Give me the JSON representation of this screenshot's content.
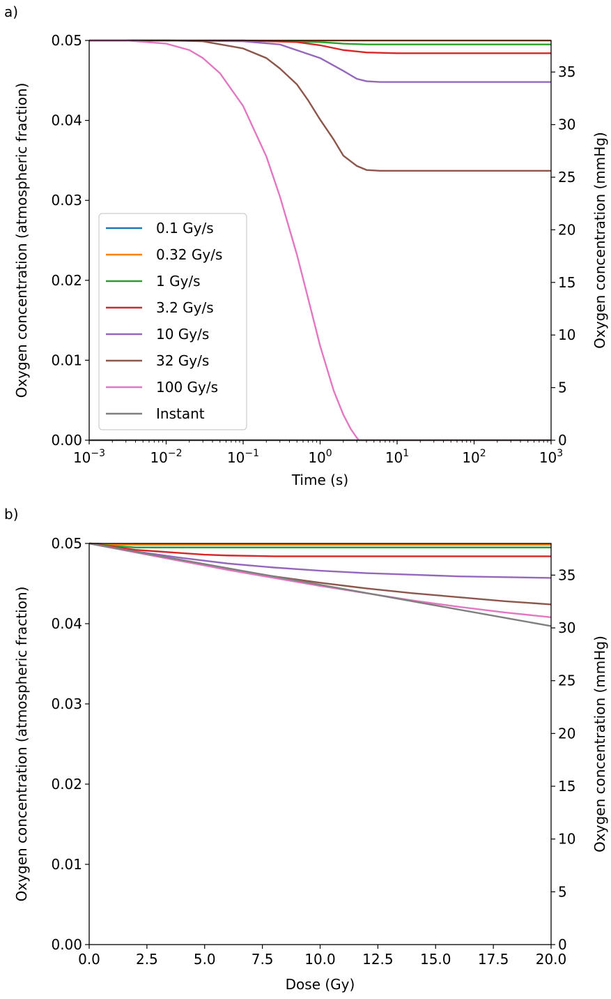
{
  "chart_data": [
    {
      "panel_label": "a)",
      "type": "line",
      "x_scale": "log",
      "xlim": [
        0.001,
        1000
      ],
      "ylim": [
        0,
        0.05
      ],
      "y2lim": [
        0,
        38
      ],
      "xlabel": "Time (s)",
      "ylabel": "Oxygen concentration (atmospheric fraction)",
      "y2label": "Oxygen concentration (mmHg)",
      "x_ticks": [
        {
          "value": 0.001,
          "base": "10",
          "exp": "−3"
        },
        {
          "value": 0.01,
          "base": "10",
          "exp": "−2"
        },
        {
          "value": 0.1,
          "base": "10",
          "exp": "−1"
        },
        {
          "value": 1,
          "base": "10",
          "exp": "0"
        },
        {
          "value": 10,
          "base": "10",
          "exp": "1"
        },
        {
          "value": 100,
          "base": "10",
          "exp": "2"
        },
        {
          "value": 1000,
          "base": "10",
          "exp": "3"
        }
      ],
      "y_ticks": [
        "0.00",
        "0.01",
        "0.02",
        "0.03",
        "0.04",
        "0.05"
      ],
      "y2_ticks": [
        "0",
        "5",
        "10",
        "15",
        "20",
        "25",
        "30",
        "35"
      ],
      "legend_position": "lower-left",
      "series": [
        {
          "name": "0.1 Gy/s",
          "color": "#1f77b4",
          "x": [
            0.001,
            0.01,
            0.1,
            1,
            10,
            100,
            1000
          ],
          "y": [
            0.04999,
            0.04999,
            0.04999,
            0.04999,
            0.04999,
            0.04999,
            0.04999
          ]
        },
        {
          "name": "0.32 Gy/s",
          "color": "#ff7f0e",
          "x": [
            0.001,
            0.01,
            0.1,
            1,
            10,
            100,
            1000
          ],
          "y": [
            0.04998,
            0.04998,
            0.04998,
            0.04998,
            0.04998,
            0.04998,
            0.04998
          ]
        },
        {
          "name": "1 Gy/s",
          "color": "#2ca02c",
          "x": [
            0.001,
            0.01,
            0.1,
            1,
            2,
            4,
            10,
            100,
            1000
          ],
          "y": [
            0.05,
            0.05,
            0.04999,
            0.0498,
            0.0496,
            0.0495,
            0.0495,
            0.0495,
            0.0495
          ]
        },
        {
          "name": "3.2 Gy/s",
          "color": "#d62728",
          "x": [
            0.001,
            0.01,
            0.1,
            0.5,
            1,
            2,
            4,
            10,
            100,
            1000
          ],
          "y": [
            0.05,
            0.05,
            0.04999,
            0.0498,
            0.0494,
            0.0488,
            0.0485,
            0.0484,
            0.0484,
            0.0484
          ]
        },
        {
          "name": "10 Gy/s",
          "color": "#9467bd",
          "x": [
            0.001,
            0.01,
            0.1,
            0.3,
            1,
            2,
            3,
            4,
            6,
            10,
            100,
            1000
          ],
          "y": [
            0.05,
            0.05,
            0.0499,
            0.0495,
            0.0478,
            0.0462,
            0.0452,
            0.0449,
            0.0448,
            0.0448,
            0.0448,
            0.0448
          ]
        },
        {
          "name": "32 Gy/s",
          "color": "#8c564b",
          "x": [
            0.001,
            0.01,
            0.03,
            0.1,
            0.2,
            0.3,
            0.5,
            0.7,
            1,
            1.5,
            2,
            3,
            4,
            6,
            10,
            100,
            1000
          ],
          "y": [
            0.05,
            0.05,
            0.0499,
            0.049,
            0.0478,
            0.0465,
            0.0445,
            0.0425,
            0.0401,
            0.0376,
            0.0356,
            0.0343,
            0.0338,
            0.0337,
            0.0337,
            0.0337,
            0.0337
          ]
        },
        {
          "name": "100 Gy/s",
          "color": "#e377c2",
          "x": [
            0.001,
            0.003,
            0.01,
            0.02,
            0.03,
            0.05,
            0.1,
            0.2,
            0.3,
            0.5,
            0.7,
            1,
            1.5,
            2,
            2.5,
            3,
            3.2,
            1000
          ],
          "y": [
            0.05,
            0.05,
            0.0496,
            0.0488,
            0.0478,
            0.0459,
            0.0418,
            0.0355,
            0.0305,
            0.0232,
            0.0177,
            0.0118,
            0.0062,
            0.0032,
            0.0014,
            0.0003,
            0.0,
            0.0
          ]
        },
        {
          "name": "Instant",
          "color": "#7f7f7f",
          "x": [
            0.001,
            1000
          ],
          "y": [
            0.0,
            0.0
          ]
        }
      ]
    },
    {
      "panel_label": "b)",
      "type": "line",
      "xlim": [
        0,
        20
      ],
      "ylim": [
        0,
        0.05
      ],
      "y2lim": [
        0,
        38
      ],
      "xlabel": "Dose (Gy)",
      "ylabel": "Oxygen concentration (atmospheric fraction)",
      "y2label": "Oxygen concentration (mmHg)",
      "x_ticks": [
        "0.0",
        "2.5",
        "5.0",
        "7.5",
        "10.0",
        "12.5",
        "15.0",
        "17.5",
        "20.0"
      ],
      "y_ticks": [
        "0.00",
        "0.01",
        "0.02",
        "0.03",
        "0.04",
        "0.05"
      ],
      "y2_ticks": [
        "0",
        "5",
        "10",
        "15",
        "20",
        "25",
        "30",
        "35"
      ],
      "series": [
        {
          "name": "0.1 Gy/s",
          "color": "#1f77b4",
          "x": [
            0,
            1,
            2,
            20
          ],
          "y": [
            0.05,
            0.0499,
            0.0499,
            0.0499
          ]
        },
        {
          "name": "0.32 Gy/s",
          "color": "#ff7f0e",
          "x": [
            0,
            1,
            2,
            20
          ],
          "y": [
            0.05,
            0.04985,
            0.04983,
            0.04983
          ]
        },
        {
          "name": "1 Gy/s",
          "color": "#2ca02c",
          "x": [
            0,
            1,
            2,
            3,
            20
          ],
          "y": [
            0.05,
            0.0497,
            0.0495,
            0.0495,
            0.0495
          ]
        },
        {
          "name": "3.2 Gy/s",
          "color": "#d62728",
          "x": [
            0,
            1,
            2,
            3,
            4,
            5,
            6,
            8,
            20
          ],
          "y": [
            0.05,
            0.0496,
            0.0492,
            0.049,
            0.0488,
            0.0486,
            0.0485,
            0.0484,
            0.0484
          ]
        },
        {
          "name": "10 Gy/s",
          "color": "#9467bd",
          "x": [
            0,
            2,
            4,
            6,
            8,
            10,
            12,
            14,
            16,
            18,
            20
          ],
          "y": [
            0.05,
            0.049,
            0.0482,
            0.0475,
            0.047,
            0.0466,
            0.0463,
            0.0461,
            0.0459,
            0.0458,
            0.0457
          ]
        },
        {
          "name": "32 Gy/s",
          "color": "#8c564b",
          "x": [
            0,
            2,
            4,
            6,
            8,
            10,
            12,
            14,
            16,
            18,
            20
          ],
          "y": [
            0.05,
            0.0489,
            0.0478,
            0.0468,
            0.0459,
            0.0451,
            0.0444,
            0.0438,
            0.0433,
            0.0428,
            0.0424
          ]
        },
        {
          "name": "100 Gy/s",
          "color": "#e377c2",
          "x": [
            0,
            2,
            4,
            6,
            8,
            10,
            12,
            14,
            16,
            18,
            20
          ],
          "y": [
            0.05,
            0.0489,
            0.0478,
            0.0467,
            0.0457,
            0.0447,
            0.0438,
            0.0429,
            0.0421,
            0.0414,
            0.0408
          ]
        },
        {
          "name": "Instant",
          "color": "#7f7f7f",
          "x": [
            0,
            20
          ],
          "y": [
            0.05,
            0.0397
          ]
        }
      ]
    }
  ]
}
